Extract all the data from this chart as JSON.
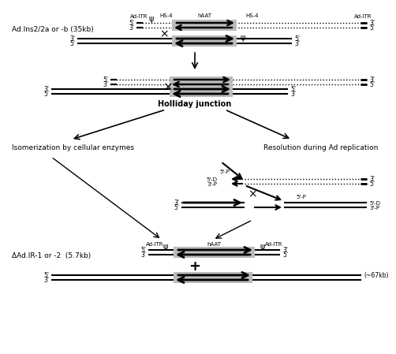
{
  "bg_color": "#ffffff",
  "sections": {
    "s1_label": "Ad.Ins2/2a or -b (35kb)",
    "s1_top_labels": [
      "Ad-ITR",
      "ψ",
      "HS-4",
      "hAAT",
      "HS-4",
      "Ad-ITR"
    ],
    "holliday_label": "Holliday junction",
    "iso_label": "Isomerization by cellular enzymes",
    "res_label": "Resolution during Ad replication",
    "delta_label": "ΔAd.IR-1 or -2  (5.7kb)",
    "delta_top_labels": [
      "Ad-ITR",
      "ψ",
      "hAAT",
      "ψ",
      "Ad-ITR"
    ],
    "bottom_label": "(~67kb)"
  }
}
